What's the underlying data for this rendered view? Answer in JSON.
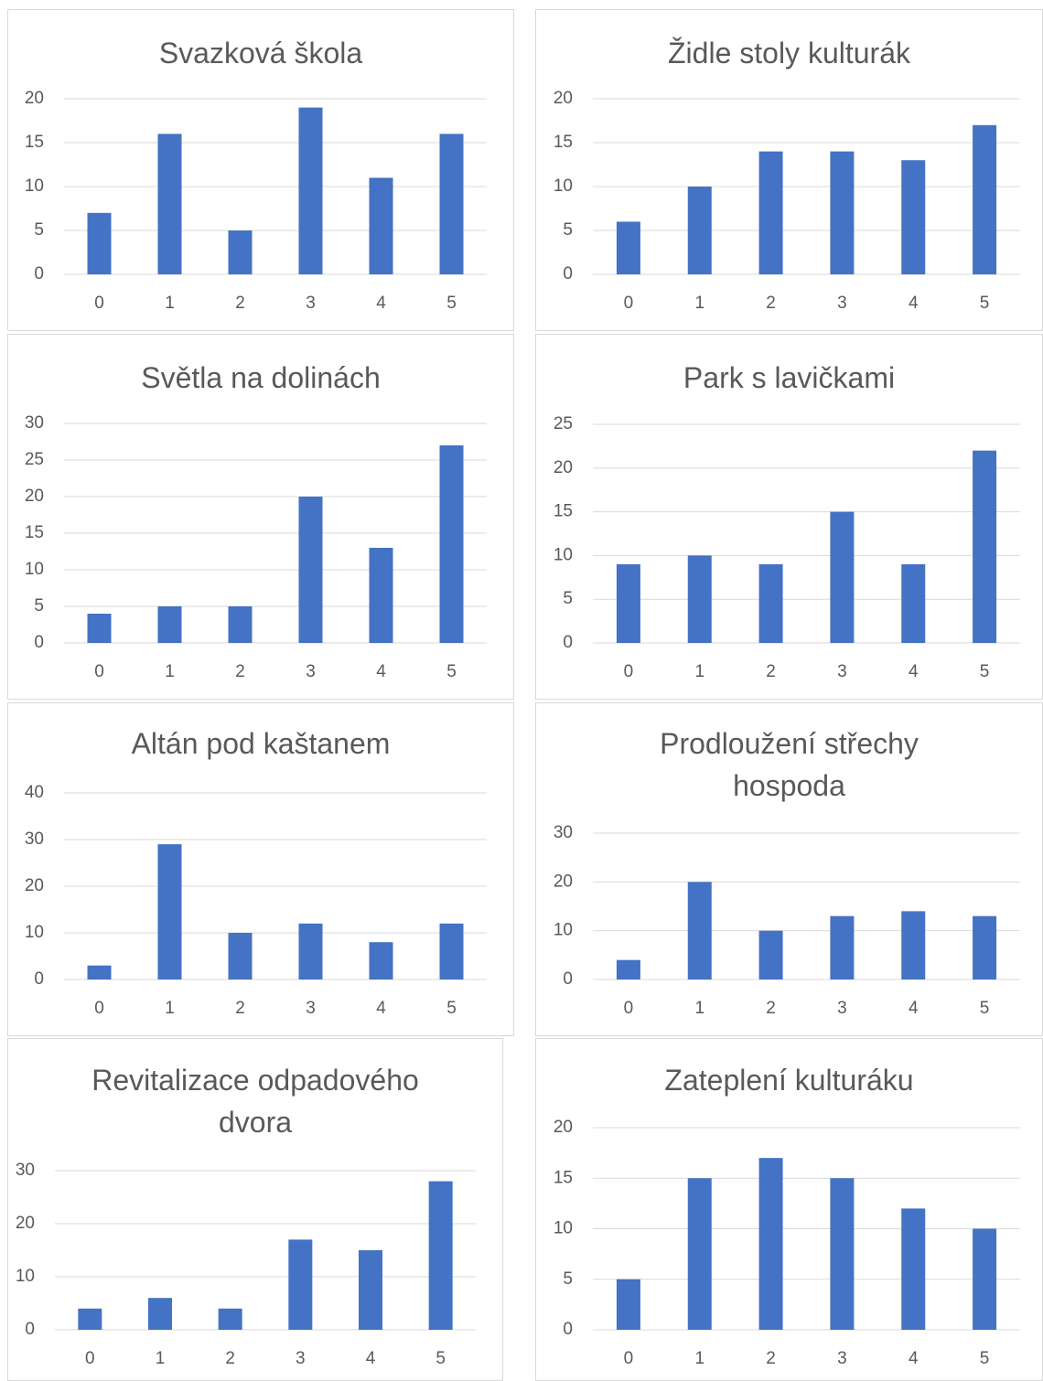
{
  "chart_data": [
    {
      "type": "bar",
      "title": "Svazková škola",
      "categories": [
        "0",
        "1",
        "2",
        "3",
        "4",
        "5"
      ],
      "values": [
        7,
        16,
        5,
        19,
        11,
        16
      ],
      "color": "#4472c4",
      "ylim": [
        0,
        20
      ],
      "yticks": [
        0,
        5,
        10,
        15,
        20
      ],
      "grid": true
    },
    {
      "type": "bar",
      "title": "Židle stoly kulturák",
      "categories": [
        "0",
        "1",
        "2",
        "3",
        "4",
        "5"
      ],
      "values": [
        6,
        10,
        14,
        14,
        13,
        17
      ],
      "color": "#4472c4",
      "ylim": [
        0,
        20
      ],
      "yticks": [
        0,
        5,
        10,
        15,
        20
      ],
      "grid": true
    },
    {
      "type": "bar",
      "title": "Světla na dolinách",
      "categories": [
        "0",
        "1",
        "2",
        "3",
        "4",
        "5"
      ],
      "values": [
        4,
        5,
        5,
        20,
        13,
        27
      ],
      "color": "#4472c4",
      "ylim": [
        0,
        30
      ],
      "yticks": [
        0,
        5,
        10,
        15,
        20,
        25,
        30
      ],
      "grid": true
    },
    {
      "type": "bar",
      "title": "Park s lavičkami",
      "categories": [
        "0",
        "1",
        "2",
        "3",
        "4",
        "5"
      ],
      "values": [
        9,
        10,
        9,
        15,
        9,
        22
      ],
      "color": "#4472c4",
      "ylim": [
        0,
        25
      ],
      "yticks": [
        0,
        5,
        10,
        15,
        20,
        25
      ],
      "grid": true
    },
    {
      "type": "bar",
      "title": "Altán pod kaštanem",
      "categories": [
        "0",
        "1",
        "2",
        "3",
        "4",
        "5"
      ],
      "values": [
        3,
        29,
        10,
        12,
        8,
        12
      ],
      "color": "#4472c4",
      "ylim": [
        0,
        40
      ],
      "yticks": [
        0,
        10,
        20,
        30,
        40
      ],
      "grid": true
    },
    {
      "type": "bar",
      "title": "Prodloužení střechy hospoda",
      "categories": [
        "0",
        "1",
        "2",
        "3",
        "4",
        "5"
      ],
      "values": [
        4,
        20,
        10,
        13,
        14,
        13
      ],
      "color": "#4472c4",
      "ylim": [
        0,
        30
      ],
      "yticks": [
        0,
        10,
        20,
        30
      ],
      "grid": true
    },
    {
      "type": "bar",
      "title": "Revitalizace odpadového dvora",
      "categories": [
        "0",
        "1",
        "2",
        "3",
        "4",
        "5"
      ],
      "values": [
        4,
        6,
        4,
        17,
        15,
        28
      ],
      "color": "#4472c4",
      "ylim": [
        0,
        30
      ],
      "yticks": [
        0,
        10,
        20,
        30
      ],
      "grid": true
    },
    {
      "type": "bar",
      "title": "Zateplení kulturáku",
      "categories": [
        "0",
        "1",
        "2",
        "3",
        "4",
        "5"
      ],
      "values": [
        5,
        15,
        17,
        15,
        12,
        10
      ],
      "color": "#4472c4",
      "ylim": [
        0,
        20
      ],
      "yticks": [
        0,
        5,
        10,
        15,
        20
      ],
      "grid": true
    }
  ]
}
